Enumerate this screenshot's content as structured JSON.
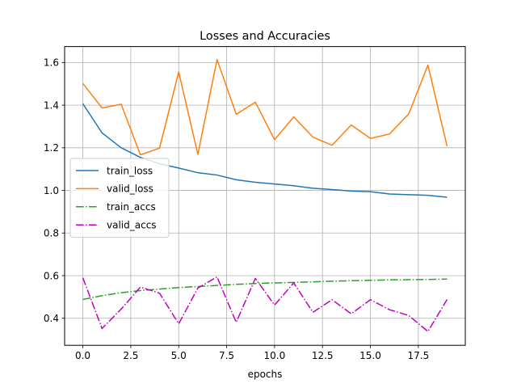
{
  "chart_data": {
    "type": "line",
    "title": "Losses and Accuracies",
    "xlabel": "epochs",
    "ylabel": "",
    "xlim": [
      -0.95,
      19.95
    ],
    "ylim": [
      0.273,
      1.675
    ],
    "grid": true,
    "legend_placement": "center-left",
    "x_ticks": [
      "0.0",
      "2.5",
      "5.0",
      "7.5",
      "10.0",
      "12.5",
      "15.0",
      "17.5"
    ],
    "x_tick_values": [
      0,
      2.5,
      5,
      7.5,
      10,
      12.5,
      15,
      17.5
    ],
    "y_ticks": [
      "0.4",
      "0.6",
      "0.8",
      "1.0",
      "1.2",
      "1.4",
      "1.6"
    ],
    "y_tick_values": [
      0.4,
      0.6,
      0.8,
      1.0,
      1.2,
      1.4,
      1.6
    ],
    "x": [
      0,
      1,
      2,
      3,
      4,
      5,
      6,
      7,
      8,
      9,
      10,
      11,
      12,
      13,
      14,
      15,
      16,
      17,
      18,
      19
    ],
    "series": [
      {
        "name": "train_loss",
        "color": "#1f77b4",
        "dash": "solid",
        "values": [
          1.407,
          1.27,
          1.2,
          1.155,
          1.125,
          1.105,
          1.083,
          1.072,
          1.05,
          1.038,
          1.03,
          1.022,
          1.01,
          1.004,
          0.997,
          0.994,
          0.983,
          0.98,
          0.977,
          0.968
        ]
      },
      {
        "name": "valid_loss",
        "color": "#ff7f0e",
        "dash": "solid",
        "values": [
          1.502,
          1.387,
          1.404,
          1.167,
          1.198,
          1.556,
          1.169,
          1.614,
          1.357,
          1.414,
          1.238,
          1.345,
          1.25,
          1.212,
          1.307,
          1.244,
          1.265,
          1.359,
          1.588,
          1.207
        ]
      },
      {
        "name": "train_accs",
        "color": "#2ca02c",
        "dash": "dashdot",
        "values": [
          0.488,
          0.506,
          0.52,
          0.53,
          0.537,
          0.544,
          0.549,
          0.554,
          0.559,
          0.563,
          0.566,
          0.568,
          0.571,
          0.574,
          0.576,
          0.578,
          0.58,
          0.581,
          0.582,
          0.584
        ]
      },
      {
        "name": "valid_accs",
        "color": "#bf00bf",
        "dash": "dashdot",
        "values": [
          0.59,
          0.352,
          0.443,
          0.546,
          0.518,
          0.374,
          0.542,
          0.594,
          0.381,
          0.587,
          0.462,
          0.566,
          0.428,
          0.487,
          0.421,
          0.487,
          0.44,
          0.413,
          0.338,
          0.488
        ]
      }
    ]
  }
}
